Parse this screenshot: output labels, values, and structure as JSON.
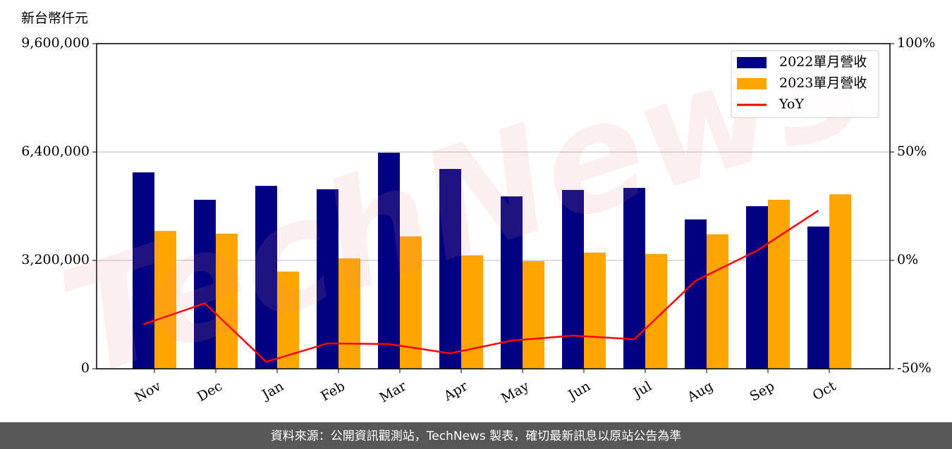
{
  "chart_data": {
    "type": "bar",
    "y_axis_label": "新台幣仟元",
    "watermark": "TechNews",
    "footer": "資料來源：公開資訊觀測站，TechNews 製表，確切最新訊息以原站公告為準",
    "categories": [
      "Nov",
      "Dec",
      "Jan",
      "Feb",
      "Mar",
      "Apr",
      "May",
      "Jun",
      "Jul",
      "Aug",
      "Sep",
      "Oct"
    ],
    "series": [
      {
        "name": "2022單月營收",
        "color": "#000080",
        "values": [
          5800000,
          4990000,
          5400000,
          5300000,
          6380000,
          5900000,
          5090000,
          5280000,
          5340000,
          4410000,
          4800000,
          4200000
        ]
      },
      {
        "name": "2023單月營收",
        "color": "#ffa500",
        "values": [
          4070000,
          3990000,
          2870000,
          3260000,
          3910000,
          3350000,
          3180000,
          3430000,
          3390000,
          3970000,
          4990000,
          5150000
        ]
      },
      {
        "name": "YoY",
        "type": "line",
        "axis": "y2",
        "color": "#ff0000",
        "values": [
          -29.5,
          -19.8,
          -46.8,
          -38.3,
          -38.6,
          -42.9,
          -37,
          -34.7,
          -36.4,
          -9.4,
          4.5,
          23
        ]
      }
    ],
    "ylim": [
      0,
      9600000
    ],
    "yticks": [
      0,
      {
        "value": 3200000,
        "label": "3,200,000"
      },
      {
        "value": 6400000,
        "label": "6,400,000"
      },
      {
        "value": 9600000,
        "label": "9,600,000"
      }
    ],
    "y2lim": [
      -50,
      100
    ],
    "y2ticks": [
      {
        "value": -50,
        "label": "-50%"
      },
      {
        "value": 0,
        "label": "0%"
      },
      {
        "value": 50,
        "label": "50%"
      },
      {
        "value": 100,
        "label": "100%"
      }
    ],
    "grid": true,
    "legend": "upper right"
  }
}
